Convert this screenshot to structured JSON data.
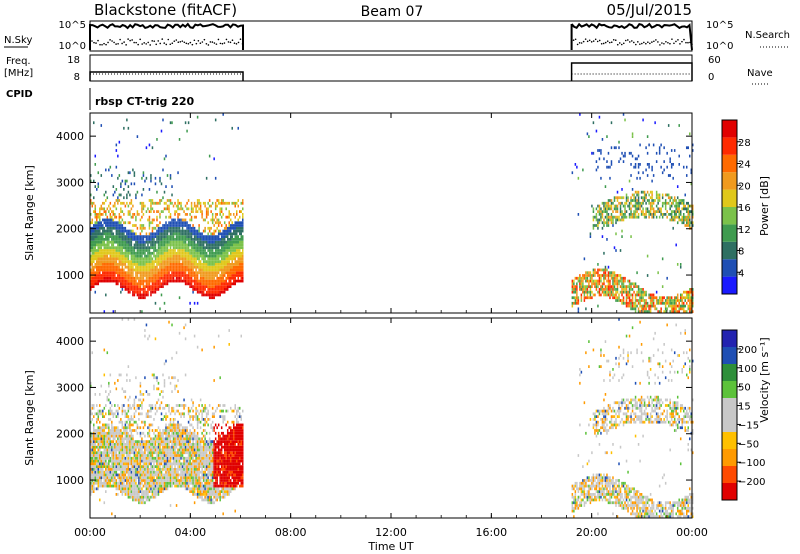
{
  "header": {
    "station": "Blackstone (fitACF)",
    "beam": "Beam 07",
    "date": "05/Jul/2015"
  },
  "panels": {
    "nsky": {
      "left_label": "N.Sky",
      "left_ticks": [
        "10^5",
        "10^0"
      ],
      "right_ticks": [
        "10^5",
        "10^0"
      ],
      "right_label": "N.Search"
    },
    "freq": {
      "left_label_top": "Freq.",
      "left_label_unit": "[MHz]",
      "left_ticks": [
        "18",
        "8"
      ],
      "right_ticks": [
        "60",
        "0"
      ],
      "right_label": "Nave"
    },
    "cpid": {
      "label": "CPID",
      "value": "rbsp CT-trig 220"
    }
  },
  "x_axis": {
    "label": "Time UT",
    "ticks": [
      "00:00",
      "04:00",
      "08:00",
      "12:00",
      "16:00",
      "20:00",
      "00:00"
    ]
  },
  "colors": {
    "power": [
      "#1a1aff",
      "#1f4fb4",
      "#2e6f62",
      "#3f9b4f",
      "#7bc24a",
      "#e0c81b",
      "#f09a1e",
      "#ff6a00",
      "#ff2a00",
      "#e00000"
    ],
    "velocity": [
      "#e00000",
      "#ff4a00",
      "#ff9a00",
      "#ffc000",
      "#c8c8c8",
      "#c8c8c8",
      "#5cc23a",
      "#2e8f3a",
      "#1f4fb4",
      "#2323b0"
    ]
  },
  "chart_data": [
    {
      "type": "heatmap",
      "title": "Power",
      "ylabel": "Slant Range [km]",
      "xlabel": "Time UT",
      "y_ticks": [
        1000,
        2000,
        3000,
        4000
      ],
      "ylim": [
        180,
        4500
      ],
      "xlim_hours": [
        0,
        24
      ],
      "colorbar": {
        "label": "Power [dB]",
        "ticks": [
          "4",
          "8",
          "12",
          "16",
          "20",
          "24",
          "28"
        ],
        "range": [
          0,
          30
        ]
      },
      "data_segments_hours": [
        [
          0.0,
          6.1
        ],
        [
          19.2,
          24.0
        ]
      ]
    },
    {
      "type": "heatmap",
      "title": "Velocity",
      "ylabel": "Slant Range [km]",
      "xlabel": "Time UT",
      "y_ticks": [
        1000,
        2000,
        3000,
        4000
      ],
      "ylim": [
        180,
        4500
      ],
      "xlim_hours": [
        0,
        24
      ],
      "colorbar": {
        "label": "Velocity [m s⁻¹]",
        "ticks": [
          "200",
          "100",
          "50",
          "15",
          "−15",
          "−50",
          "−100",
          "−200"
        ]
      },
      "data_segments_hours": [
        [
          0.0,
          6.1
        ],
        [
          19.2,
          24.0
        ]
      ]
    }
  ]
}
